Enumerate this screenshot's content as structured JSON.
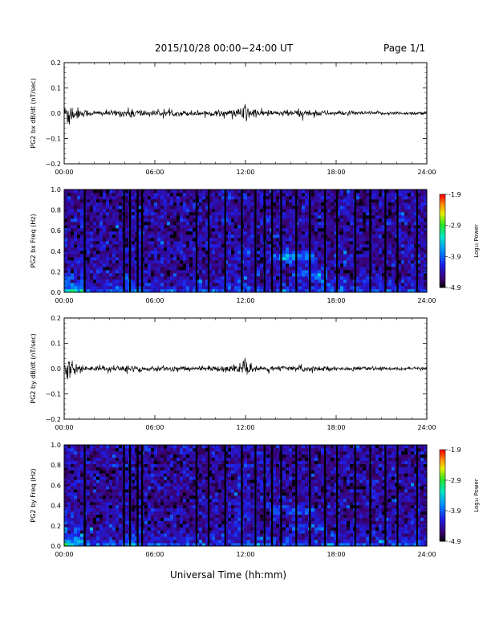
{
  "header": {
    "title": "2015/10/28  00:00−24:00 UT",
    "page": "Page 1/1"
  },
  "xlabel": "Universal Time (hh:mm)",
  "colorbar": {
    "label": "Log₁₀ Power",
    "ticks": [
      "-1.9",
      "-2.9",
      "-3.9",
      "-4.9"
    ],
    "range": [
      -4.9,
      -1.9
    ]
  },
  "chart_data": [
    {
      "type": "line",
      "ylabel": "PG2 bx dB/dt (nT/sec)",
      "xlim": [
        0,
        24
      ],
      "ylim": [
        -0.2,
        0.2
      ],
      "xticks": [
        "00:00",
        "06:00",
        "12:00",
        "18:00",
        "24:00"
      ],
      "yticks": [
        "0.2",
        "0.1",
        "0.0",
        "−0.1",
        "−0.2"
      ],
      "envelope": {
        "x": [
          0,
          0.2,
          0.4,
          0.6,
          1,
          1.5,
          2,
          3,
          4,
          4.5,
          5,
          6,
          8,
          10,
          11.5,
          11.8,
          12,
          12.3,
          13,
          14,
          15.5,
          16.5,
          17,
          18,
          20,
          22,
          24
        ],
        "amp": [
          0.008,
          0.07,
          0.045,
          0.03,
          0.018,
          0.012,
          0.01,
          0.01,
          0.014,
          0.02,
          0.014,
          0.01,
          0.01,
          0.01,
          0.014,
          0.03,
          0.04,
          0.02,
          0.012,
          0.01,
          0.014,
          0.012,
          0.01,
          0.008,
          0.007,
          0.006,
          0.006
        ]
      }
    },
    {
      "type": "heatmap",
      "ylabel": "PG2 bx Freq (Hz)",
      "xlim": [
        0,
        24
      ],
      "ylim": [
        0,
        1
      ],
      "zlim": [
        -4.9,
        -1.9
      ],
      "xticks": [
        "00:00",
        "06:00",
        "12:00",
        "18:00",
        "24:00"
      ],
      "yticks": [
        "1.0",
        "0.8",
        "0.6",
        "0.4",
        "0.2",
        "0.0"
      ],
      "gaps": [
        1.3,
        3.9,
        4.3,
        4.8,
        5.1,
        8.7,
        9.5,
        10.6,
        11.7,
        12.6,
        13.2,
        13.7,
        14.3,
        15.3,
        16.2,
        17.2,
        18.0,
        19.2,
        20.2,
        21.2,
        22.0,
        23.3
      ]
    },
    {
      "type": "line",
      "ylabel": "PG2 by dB/dt (nT/sec)",
      "xlim": [
        0,
        24
      ],
      "ylim": [
        -0.2,
        0.2
      ],
      "xticks": [
        "00:00",
        "06:00",
        "12:00",
        "18:00",
        "24:00"
      ],
      "yticks": [
        "0.2",
        "0.1",
        "0.0",
        "−0.1",
        "−0.2"
      ],
      "envelope": {
        "x": [
          0,
          0.2,
          0.4,
          0.6,
          1,
          1.5,
          2,
          3,
          4,
          4.5,
          5,
          6,
          8,
          10,
          11.5,
          11.8,
          12,
          12.3,
          13,
          14,
          15.5,
          16.5,
          17,
          18,
          20,
          22,
          24
        ],
        "amp": [
          0.008,
          0.045,
          0.035,
          0.025,
          0.015,
          0.01,
          0.009,
          0.009,
          0.012,
          0.016,
          0.012,
          0.009,
          0.009,
          0.009,
          0.012,
          0.025,
          0.03,
          0.016,
          0.01,
          0.009,
          0.012,
          0.01,
          0.008,
          0.007,
          0.006,
          0.006,
          0.006
        ]
      }
    },
    {
      "type": "heatmap",
      "ylabel": "PG2 by Freq (Hz)",
      "xlim": [
        0,
        24
      ],
      "ylim": [
        0,
        1
      ],
      "zlim": [
        -4.9,
        -1.9
      ],
      "xticks": [
        "00:00",
        "06:00",
        "12:00",
        "18:00",
        "24:00"
      ],
      "yticks": [
        "1.0",
        "0.8",
        "0.6",
        "0.4",
        "0.2",
        "0.0"
      ],
      "gaps": [
        1.3,
        3.9,
        4.3,
        4.8,
        5.1,
        8.7,
        9.5,
        10.6,
        11.7,
        12.6,
        13.2,
        13.7,
        14.3,
        15.3,
        16.2,
        17.2,
        18.0,
        19.2,
        20.2,
        21.2,
        22.0,
        23.3
      ]
    }
  ]
}
